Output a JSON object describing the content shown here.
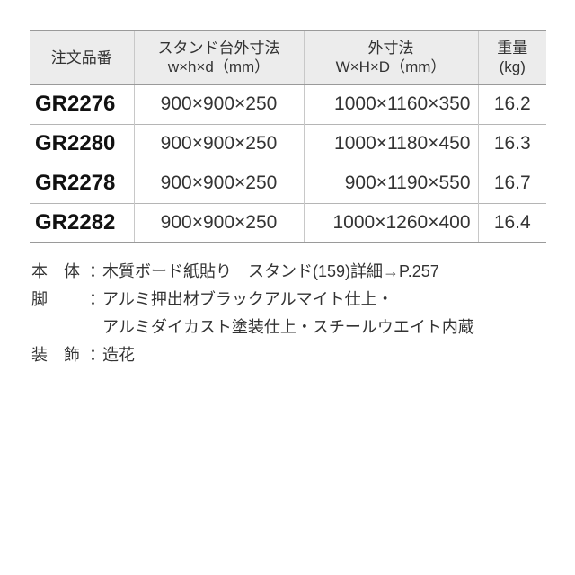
{
  "table": {
    "headers": [
      {
        "line1": "注文品番",
        "line2": ""
      },
      {
        "line1": "スタンド台外寸法",
        "line2": "w×h×d（mm）"
      },
      {
        "line1": "外寸法",
        "line2": "W×H×D（mm）"
      },
      {
        "line1": "重量",
        "line2": "(kg)"
      }
    ],
    "rows": [
      {
        "code": "GR2276",
        "stand": "900×900×250",
        "outer": "1000×1160×350",
        "weight": "16.2"
      },
      {
        "code": "GR2280",
        "stand": "900×900×250",
        "outer": "1000×1180×450",
        "weight": "16.3"
      },
      {
        "code": "GR2278",
        "stand": "900×900×250",
        "outer": "900×1190×550",
        "weight": "16.7"
      },
      {
        "code": "GR2282",
        "stand": "900×900×250",
        "outer": "1000×1260×400",
        "weight": "16.4"
      }
    ]
  },
  "notes": [
    {
      "label": "本　体",
      "colon": "：",
      "text": "木質ボード紙貼り　スタンド(159)詳細→P.257"
    },
    {
      "label": "脚",
      "colon": "：",
      "text": "アルミ押出材ブラックアルマイト仕上・"
    },
    {
      "label": "",
      "colon": "",
      "text": "アルミダイカスト塗装仕上・スチールウエイト内蔵"
    },
    {
      "label": "装　飾",
      "colon": "：",
      "text": "造花"
    }
  ]
}
